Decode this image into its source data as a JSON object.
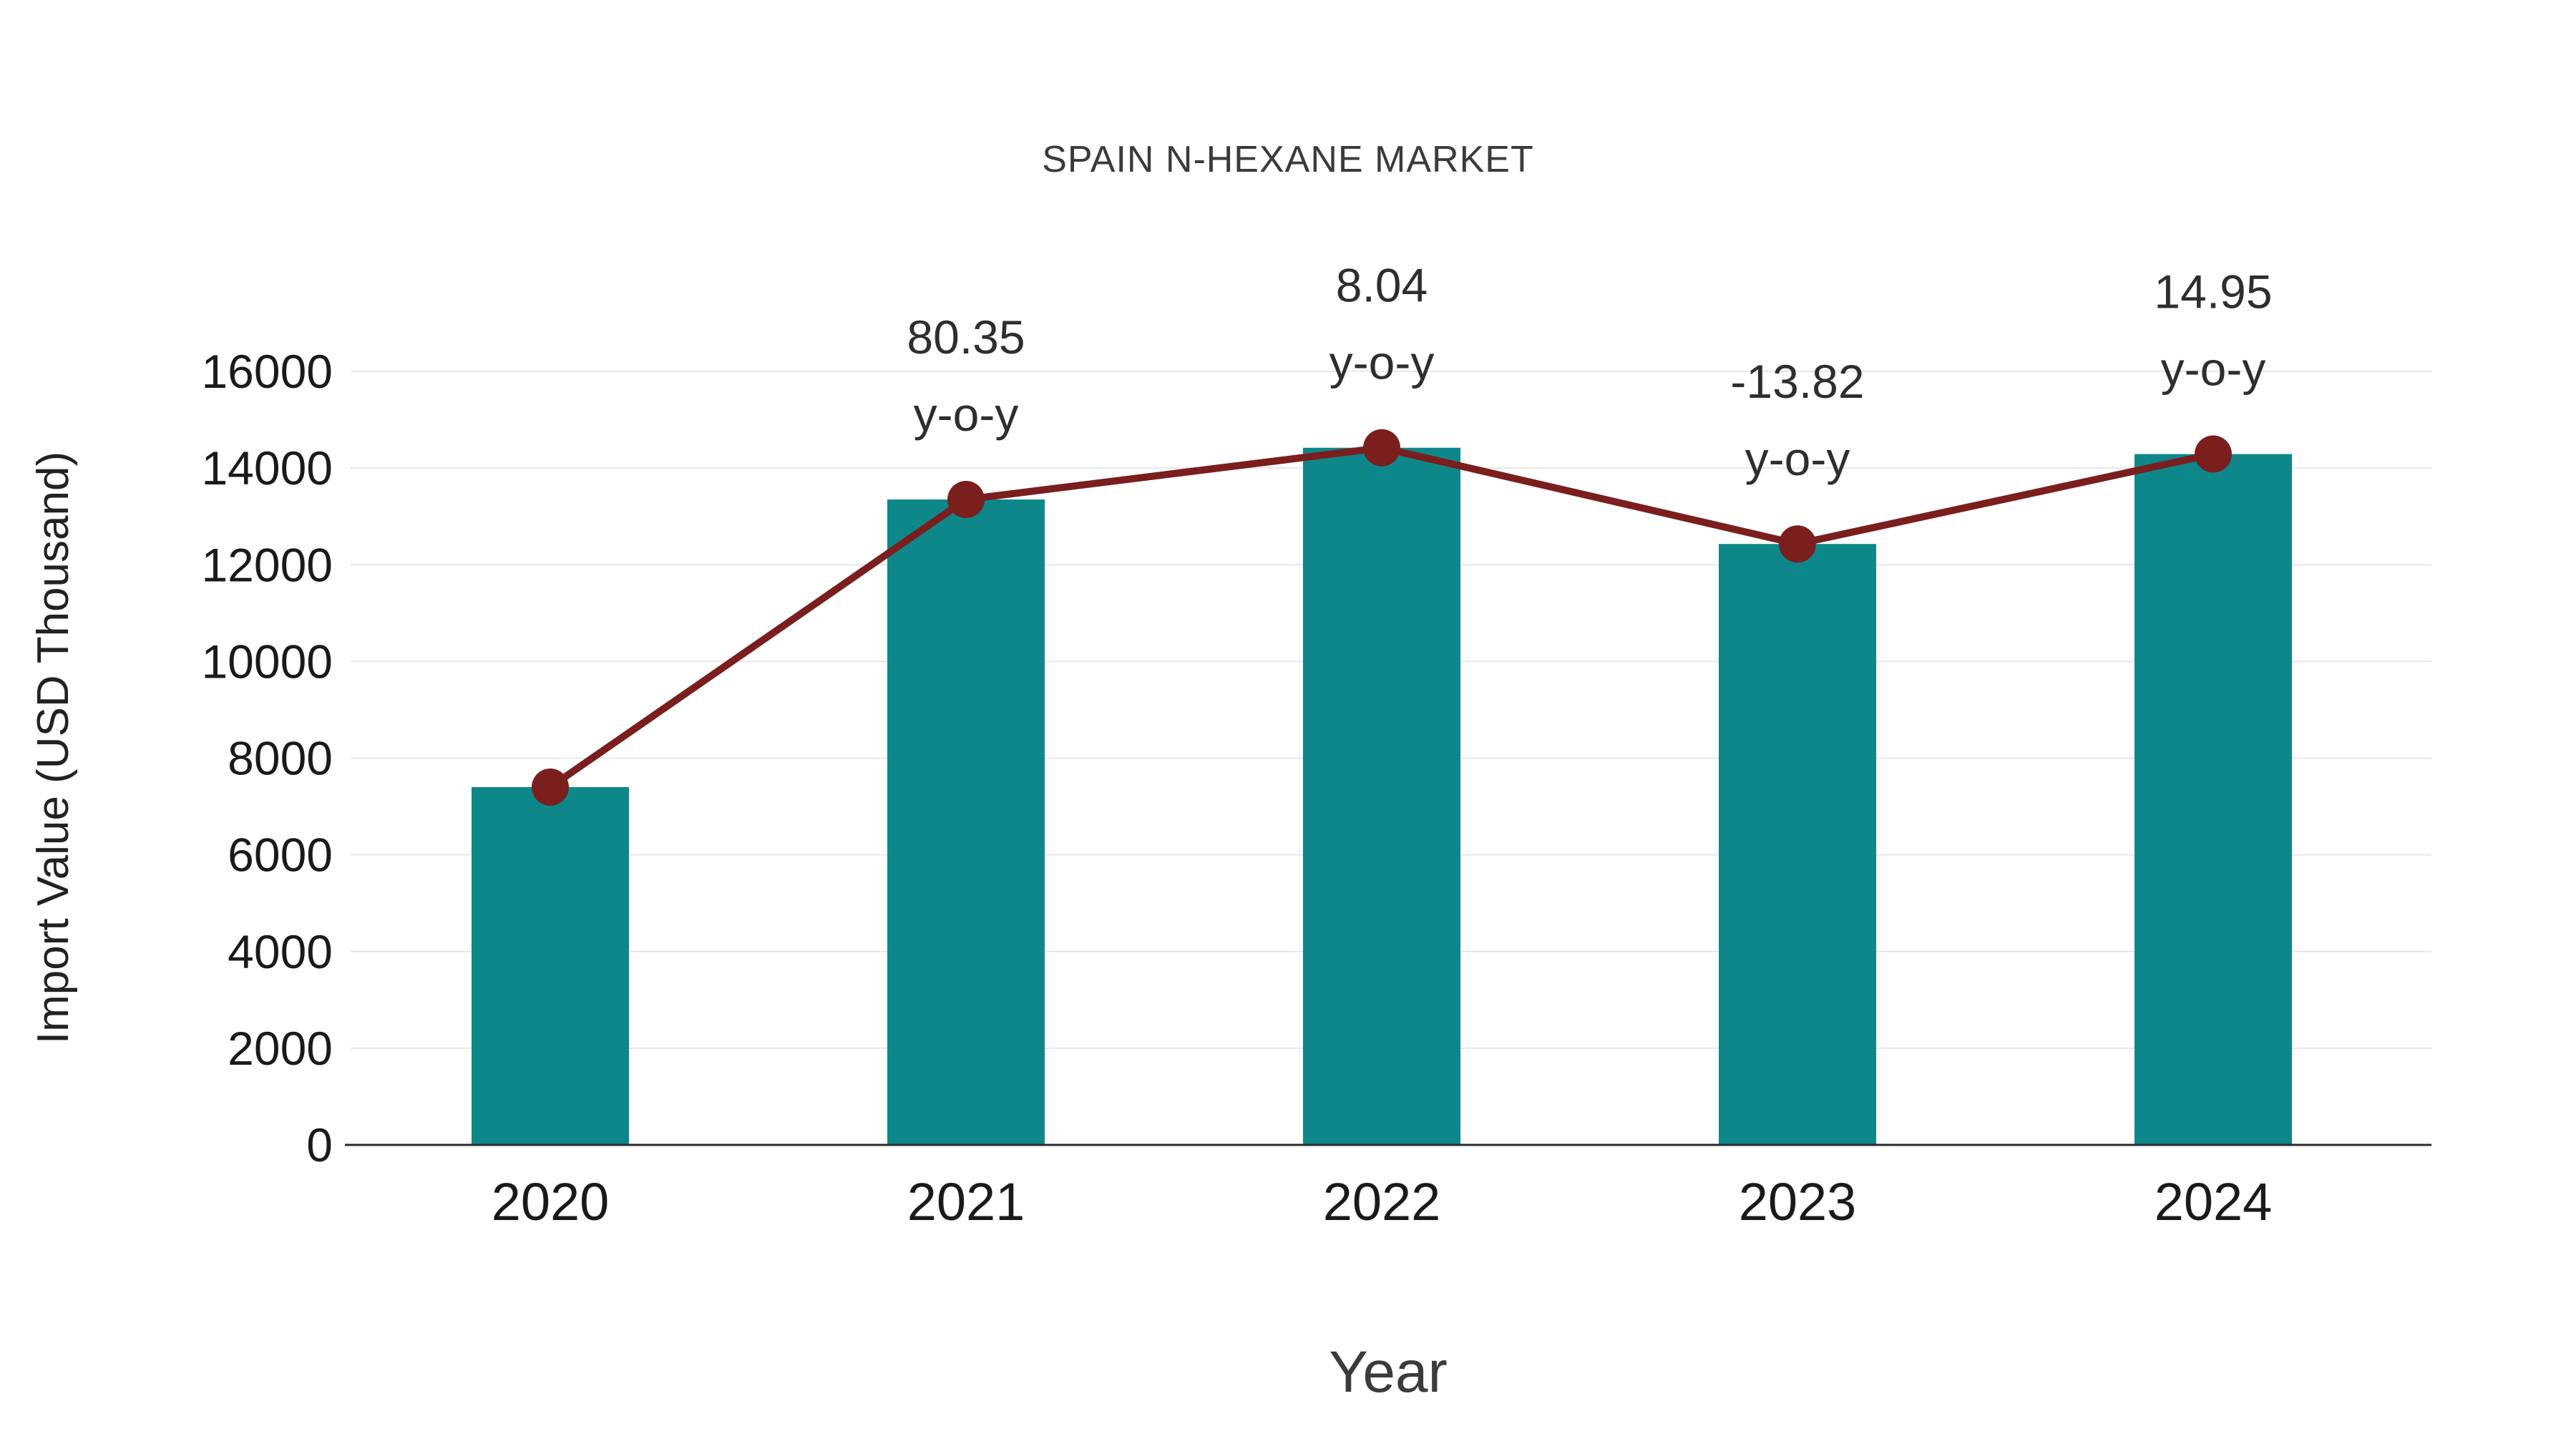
{
  "chart_data": {
    "type": "bar",
    "title": "SPAIN N-HEXANE MARKET",
    "xlabel": "Year",
    "ylabel": "Import Value (USD Thousand)",
    "categories": [
      "2020",
      "2021",
      "2022",
      "2023",
      "2024"
    ],
    "series": [
      {
        "name": "Import Value (USD Thousand)",
        "type": "bar",
        "values": [
          7400,
          13350,
          14420,
          12430,
          14290
        ]
      },
      {
        "name": "Import Value trend line",
        "type": "line",
        "values": [
          7400,
          13350,
          14420,
          12430,
          14290
        ]
      }
    ],
    "annotations": [
      {
        "category": "2021",
        "value_label": "80.35",
        "suffix_label": "y-o-y"
      },
      {
        "category": "2022",
        "value_label": "8.04",
        "suffix_label": "y-o-y"
      },
      {
        "category": "2023",
        "value_label": "-13.82",
        "suffix_label": "y-o-y"
      },
      {
        "category": "2024",
        "value_label": "14.95",
        "suffix_label": "y-o-y"
      }
    ],
    "ylim": [
      0,
      16000
    ],
    "ytick_step": 2000,
    "ytick_labels": [
      "0",
      "2000",
      "4000",
      "6000",
      "8000",
      "10000",
      "12000",
      "14000",
      "16000"
    ],
    "grid": "horizontal",
    "legend": "none",
    "colors": {
      "bar": "#0E878A",
      "line": "#7B1E1E",
      "marker": "#7B1E1E",
      "grid": "#E7E7E7",
      "axis": "#2b2b2b",
      "text": "#222222"
    }
  }
}
